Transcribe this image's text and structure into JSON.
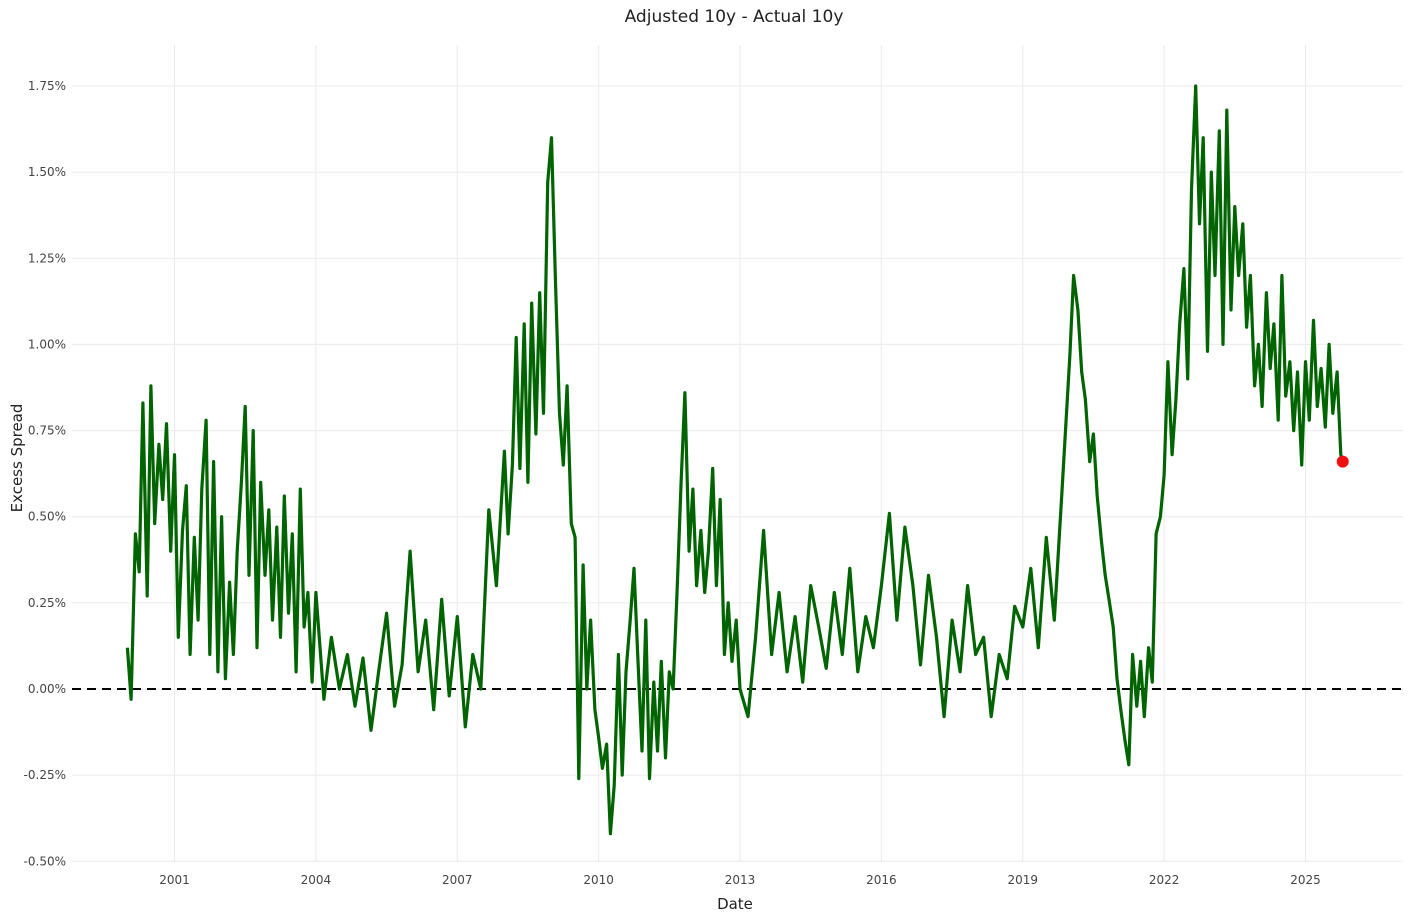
{
  "chart_data": {
    "type": "line",
    "title": "Adjusted 10y - Actual 10y",
    "xlabel": "Date",
    "ylabel": "Excess Spread",
    "xlim": [
      "2000-01-01",
      "2026-03-01"
    ],
    "ylim": [
      -0.5,
      1.85
    ],
    "yticks": [
      -0.5,
      -0.25,
      0.0,
      0.25,
      0.5,
      0.75,
      1.0,
      1.25,
      1.5,
      1.75
    ],
    "ytick_labels": [
      "-0.50%",
      "-0.25%",
      "0.00%",
      "0.25%",
      "0.50%",
      "0.75%",
      "1.00%",
      "1.25%",
      "1.50%",
      "1.75%"
    ],
    "xticks": [
      2001,
      2004,
      2007,
      2010,
      2013,
      2016,
      2019,
      2022,
      2025
    ],
    "xtick_labels": [
      "2001",
      "2004",
      "2007",
      "2010",
      "2013",
      "2016",
      "2019",
      "2022",
      "2025"
    ],
    "grid": true,
    "legend": "none",
    "reference_line": {
      "y": 0.0,
      "style": "dashed",
      "color": "#000000"
    },
    "colors": {
      "line": "#006400",
      "highlight": "#ee1111"
    },
    "series": [
      {
        "x": [
          2000.0,
          2000.08,
          2000.17,
          2000.25,
          2000.33,
          2000.42,
          2000.5,
          2000.58,
          2000.67,
          2000.75,
          2000.83,
          2000.92,
          2001.0,
          2001.08,
          2001.17,
          2001.25,
          2001.33,
          2001.42,
          2001.5,
          2001.58,
          2001.67,
          2001.75,
          2001.83,
          2001.92,
          2002.0,
          2002.08,
          2002.17,
          2002.25,
          2002.33,
          2002.42,
          2002.5,
          2002.58,
          2002.67,
          2002.75,
          2002.83,
          2002.92,
          2003.0,
          2003.08,
          2003.17,
          2003.25,
          2003.33,
          2003.42,
          2003.5,
          2003.58,
          2003.67,
          2003.75,
          2003.83,
          2003.92,
          2004.0,
          2004.17,
          2004.33,
          2004.5,
          2004.67,
          2004.83,
          2005.0,
          2005.17,
          2005.33,
          2005.5,
          2005.67,
          2005.83,
          2006.0,
          2006.17,
          2006.33,
          2006.5,
          2006.67,
          2006.83,
          2007.0,
          2007.17,
          2007.33,
          2007.5,
          2007.67,
          2007.83,
          2008.0,
          2008.08,
          2008.17,
          2008.25,
          2008.33,
          2008.42,
          2008.5,
          2008.58,
          2008.67,
          2008.75,
          2008.83,
          2008.92,
          2009.0,
          2009.08,
          2009.17,
          2009.25,
          2009.33,
          2009.42,
          2009.5,
          2009.58,
          2009.67,
          2009.75,
          2009.83,
          2009.92,
          2010.0,
          2010.08,
          2010.17,
          2010.25,
          2010.33,
          2010.42,
          2010.5,
          2010.58,
          2010.67,
          2010.75,
          2010.83,
          2010.92,
          2011.0,
          2011.08,
          2011.17,
          2011.25,
          2011.33,
          2011.42,
          2011.5,
          2011.58,
          2011.67,
          2011.75,
          2011.83,
          2011.92,
          2012.0,
          2012.08,
          2012.17,
          2012.25,
          2012.33,
          2012.42,
          2012.5,
          2012.58,
          2012.67,
          2012.75,
          2012.83,
          2012.92,
          2013.0,
          2013.17,
          2013.33,
          2013.5,
          2013.67,
          2013.83,
          2014.0,
          2014.17,
          2014.33,
          2014.5,
          2014.67,
          2014.83,
          2015.0,
          2015.17,
          2015.33,
          2015.5,
          2015.67,
          2015.83,
          2016.0,
          2016.17,
          2016.33,
          2016.5,
          2016.67,
          2016.83,
          2017.0,
          2017.17,
          2017.33,
          2017.5,
          2017.67,
          2017.83,
          2018.0,
          2018.17,
          2018.33,
          2018.5,
          2018.67,
          2018.83,
          2019.0,
          2019.17,
          2019.33,
          2019.5,
          2019.67,
          2019.83,
          2020.0,
          2020.08,
          2020.17,
          2020.25,
          2020.33,
          2020.42,
          2020.5,
          2020.58,
          2020.67,
          2020.75,
          2020.83,
          2020.92,
          2021.0,
          2021.08,
          2021.17,
          2021.25,
          2021.33,
          2021.42,
          2021.5,
          2021.58,
          2021.67,
          2021.75,
          2021.83,
          2021.92,
          2022.0,
          2022.08,
          2022.17,
          2022.25,
          2022.33,
          2022.42,
          2022.5,
          2022.58,
          2022.67,
          2022.75,
          2022.83,
          2022.92,
          2023.0,
          2023.08,
          2023.17,
          2023.25,
          2023.33,
          2023.42,
          2023.5,
          2023.58,
          2023.67,
          2023.75,
          2023.83,
          2023.92,
          2024.0,
          2024.08,
          2024.17,
          2024.25,
          2024.33,
          2024.42,
          2024.5,
          2024.58,
          2024.67,
          2024.75,
          2024.83,
          2024.92,
          2025.0,
          2025.08,
          2025.17,
          2025.25,
          2025.33,
          2025.42,
          2025.5,
          2025.58,
          2025.67,
          2025.75,
          2025.79
        ],
        "y": [
          0.12,
          -0.03,
          0.45,
          0.34,
          0.83,
          0.27,
          0.88,
          0.48,
          0.71,
          0.55,
          0.77,
          0.4,
          0.68,
          0.15,
          0.46,
          0.59,
          0.1,
          0.44,
          0.2,
          0.58,
          0.78,
          0.1,
          0.66,
          0.05,
          0.5,
          0.03,
          0.31,
          0.1,
          0.4,
          0.6,
          0.82,
          0.33,
          0.75,
          0.12,
          0.6,
          0.33,
          0.52,
          0.2,
          0.47,
          0.15,
          0.56,
          0.22,
          0.45,
          0.05,
          0.58,
          0.18,
          0.28,
          0.02,
          0.28,
          -0.03,
          0.15,
          0.0,
          0.1,
          -0.05,
          0.09,
          -0.12,
          0.05,
          0.22,
          -0.05,
          0.07,
          0.4,
          0.05,
          0.2,
          -0.06,
          0.26,
          -0.02,
          0.21,
          -0.11,
          0.1,
          0.0,
          0.52,
          0.3,
          0.69,
          0.45,
          0.65,
          1.02,
          0.64,
          1.06,
          0.6,
          1.12,
          0.74,
          1.15,
          0.8,
          1.47,
          1.6,
          1.2,
          0.8,
          0.65,
          0.88,
          0.48,
          0.44,
          -0.26,
          0.36,
          0.0,
          0.2,
          -0.06,
          -0.14,
          -0.23,
          -0.16,
          -0.42,
          -0.28,
          0.1,
          -0.25,
          0.05,
          0.2,
          0.35,
          0.1,
          -0.18,
          0.2,
          -0.26,
          0.02,
          -0.18,
          0.08,
          -0.2,
          0.05,
          0.0,
          0.3,
          0.6,
          0.86,
          0.4,
          0.58,
          0.3,
          0.46,
          0.28,
          0.4,
          0.64,
          0.3,
          0.55,
          0.1,
          0.25,
          0.08,
          0.2,
          0.0,
          -0.08,
          0.15,
          0.46,
          0.1,
          0.28,
          0.05,
          0.21,
          0.02,
          0.3,
          0.18,
          0.06,
          0.28,
          0.1,
          0.35,
          0.05,
          0.21,
          0.12,
          0.3,
          0.51,
          0.2,
          0.47,
          0.3,
          0.07,
          0.33,
          0.15,
          -0.08,
          0.2,
          0.05,
          0.3,
          0.1,
          0.15,
          -0.08,
          0.1,
          0.03,
          0.24,
          0.18,
          0.35,
          0.12,
          0.44,
          0.2,
          0.57,
          0.97,
          1.2,
          1.1,
          0.92,
          0.84,
          0.66,
          0.74,
          0.56,
          0.43,
          0.33,
          0.26,
          0.18,
          0.03,
          -0.06,
          -0.15,
          -0.22,
          0.1,
          -0.05,
          0.08,
          -0.08,
          0.12,
          0.02,
          0.45,
          0.5,
          0.62,
          0.95,
          0.68,
          0.84,
          1.06,
          1.22,
          0.9,
          1.45,
          1.75,
          1.35,
          1.6,
          0.98,
          1.5,
          1.2,
          1.62,
          1.0,
          1.68,
          1.1,
          1.4,
          1.2,
          1.35,
          1.05,
          1.2,
          0.88,
          1.0,
          0.82,
          1.15,
          0.93,
          1.06,
          0.78,
          1.2,
          0.85,
          0.95,
          0.75,
          0.92,
          0.65,
          0.95,
          0.78,
          1.07,
          0.82,
          0.93,
          0.76,
          1.0,
          0.8,
          0.92,
          0.68,
          0.66
        ]
      }
    ],
    "highlight_point": {
      "x": 2025.79,
      "y": 0.66
    }
  }
}
